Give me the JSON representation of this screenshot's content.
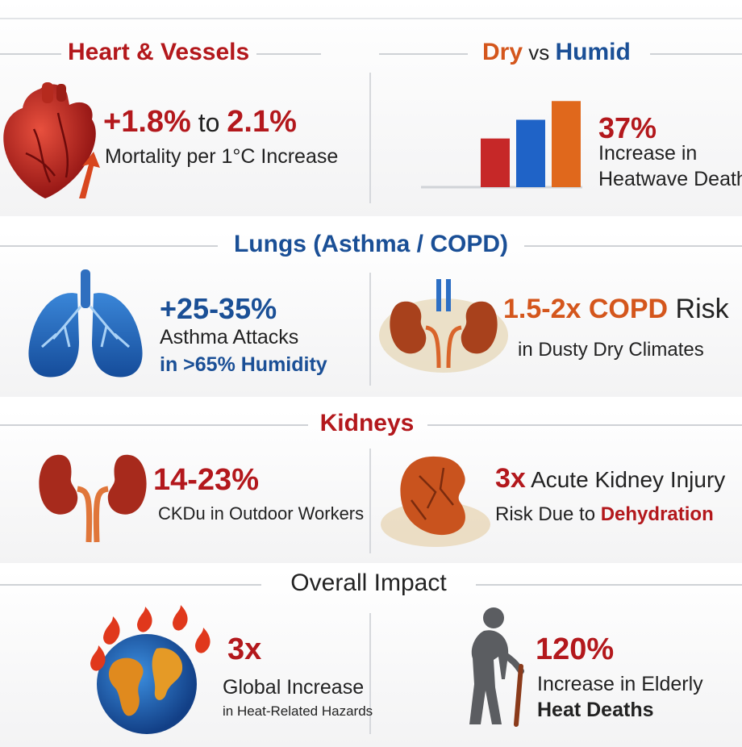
{
  "heart": {
    "title": "Heart & Vessels",
    "stat_part1": "+1.8%",
    "stat_part2": " to ",
    "stat_part3": "2.1%",
    "desc": "Mortality per 1°C Increase"
  },
  "dry_humid": {
    "title_dry": "Dry",
    "title_vs": " vs ",
    "title_humid": "Humid",
    "stat": "37%",
    "desc_line1": "Increase in",
    "desc_line2": "Heatwave Deaths",
    "bar_colors": [
      "#c62828",
      "#1f63c7",
      "#e0681c"
    ],
    "bar_levels": [
      0.52,
      0.72,
      0.92
    ]
  },
  "lungs": {
    "title": "Lungs (Asthma / COPD)",
    "stat": "+25-35%",
    "desc_line1": "Asthma Attacks",
    "desc_line2": "in >65% Humidity",
    "copd_stat": "1.5-2x",
    "copd_label": " COPD",
    "copd_risk": " Risk",
    "copd_desc": "in Dusty Dry Climates"
  },
  "kidneys": {
    "title": "Kidneys",
    "stat": "14-23%",
    "desc": "CKDu in Outdoor Workers",
    "aki_stat": "3x",
    "aki_label": " Acute Kidney Injury",
    "aki_desc_part1": "Risk Due to ",
    "aki_desc_part2": "Dehydration"
  },
  "overall": {
    "title": "Overall Impact",
    "global_stat": "3x",
    "global_line1": "Global Increase",
    "global_line2": "in Heat-Related Hazards",
    "elderly_stat": "120%",
    "elderly_line1": "Increase in Elderly",
    "elderly_line2": "Heat Deaths"
  }
}
